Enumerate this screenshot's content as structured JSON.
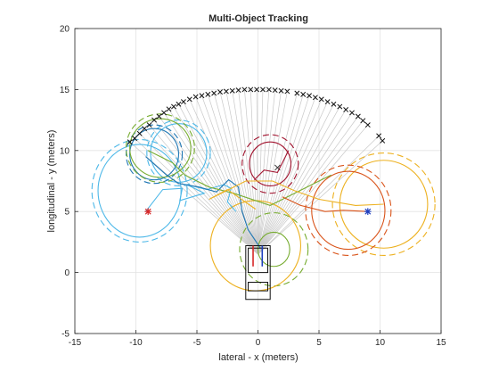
{
  "chart_data": {
    "type": "scatter",
    "title": "Multi-Object Tracking",
    "xlabel": "lateral - x (meters)",
    "ylabel": "longitudinal - y (meters)",
    "xlim": [
      -15,
      15
    ],
    "ylim": [
      -5,
      20
    ],
    "xticks": [
      -15,
      -10,
      -5,
      0,
      5,
      10,
      15
    ],
    "yticks": [
      -5,
      0,
      5,
      10,
      15,
      20
    ],
    "grid": true,
    "sensor_origin": [
      0,
      1.5
    ],
    "lidar_detections": [
      [
        -10.5,
        10.7
      ],
      [
        -10.1,
        11.0
      ],
      [
        -9.7,
        11.4
      ],
      [
        -9.3,
        11.8
      ],
      [
        -8.9,
        12.1
      ],
      [
        -8.5,
        12.5
      ],
      [
        -8.1,
        12.8
      ],
      [
        -7.7,
        13.1
      ],
      [
        -7.3,
        13.4
      ],
      [
        -6.9,
        13.6
      ],
      [
        -6.5,
        13.8
      ],
      [
        -6.1,
        14.0
      ],
      [
        -5.6,
        14.2
      ],
      [
        -5.1,
        14.4
      ],
      [
        -4.6,
        14.5
      ],
      [
        -4.1,
        14.6
      ],
      [
        -3.6,
        14.7
      ],
      [
        -3.1,
        14.8
      ],
      [
        -2.6,
        14.85
      ],
      [
        -2.1,
        14.9
      ],
      [
        -1.6,
        14.95
      ],
      [
        -1.1,
        15.0
      ],
      [
        -0.6,
        15.0
      ],
      [
        -0.1,
        15.0
      ],
      [
        0.4,
        15.0
      ],
      [
        0.9,
        15.0
      ],
      [
        1.4,
        14.95
      ],
      [
        1.9,
        14.9
      ],
      [
        2.4,
        14.85
      ],
      [
        3.2,
        14.7
      ],
      [
        3.7,
        14.6
      ],
      [
        4.2,
        14.5
      ],
      [
        4.7,
        14.35
      ],
      [
        5.2,
        14.2
      ],
      [
        5.7,
        14.0
      ],
      [
        6.2,
        13.8
      ],
      [
        6.7,
        13.6
      ],
      [
        7.2,
        13.35
      ],
      [
        7.7,
        13.1
      ],
      [
        8.2,
        12.8
      ],
      [
        8.6,
        12.45
      ],
      [
        9.0,
        12.1
      ],
      [
        9.9,
        11.2
      ],
      [
        10.2,
        10.8
      ]
    ],
    "target_markers": [
      {
        "x": -9.0,
        "y": 5.0,
        "symbol": "*",
        "color": "#d62728"
      },
      {
        "x": 9.0,
        "y": 5.0,
        "symbol": "*",
        "color": "#1f3fbf"
      },
      {
        "x": 1.6,
        "y": 8.6,
        "symbol": "x",
        "color": "#333333"
      }
    ],
    "series": [
      {
        "color": "#4db8e8",
        "ellipses": [
          {
            "cx": -9.7,
            "cy": 6.7,
            "rx": 3.4,
            "ry": 3.8,
            "dashed": false
          },
          {
            "cx": -9.7,
            "cy": 6.7,
            "rx": 3.9,
            "ry": 4.2,
            "dashed": true
          },
          {
            "cx": -6.5,
            "cy": 9.8,
            "rx": 2.3,
            "ry": 2.4,
            "dashed": false
          },
          {
            "cx": -6.5,
            "cy": 9.8,
            "rx": 2.6,
            "ry": 2.7,
            "dashed": true
          }
        ],
        "path": [
          [
            -9.2,
            5.0
          ],
          [
            -7.8,
            6.8
          ],
          [
            -6.2,
            6.9
          ],
          [
            -6.4,
            5.9
          ],
          [
            -4.4,
            6.5
          ],
          [
            -5.8,
            7.2
          ],
          [
            -4.2,
            6.8
          ],
          [
            -2.8,
            7.2
          ],
          [
            -2.2,
            6.9
          ],
          [
            -2.5,
            5.8
          ],
          [
            -1.8,
            5.0
          ]
        ]
      },
      {
        "color": "#1f77b4",
        "ellipses": [
          {
            "cx": -8.5,
            "cy": 9.7,
            "rx": 2.0,
            "ry": 2.1,
            "dashed": false
          },
          {
            "cx": -8.5,
            "cy": 9.7,
            "rx": 2.3,
            "ry": 2.4,
            "dashed": true
          }
        ],
        "path": [
          [
            -9.2,
            9.5
          ],
          [
            -7.5,
            8.0
          ],
          [
            -6.5,
            7.3
          ],
          [
            -4.8,
            7.0
          ],
          [
            -3.4,
            6.6
          ],
          [
            -2.4,
            7.6
          ],
          [
            -1.6,
            7.0
          ],
          [
            -1.3,
            5.0
          ],
          [
            -0.8,
            3.5
          ],
          [
            0.2,
            2.0
          ]
        ]
      },
      {
        "color": "#77ac30",
        "ellipses": [
          {
            "cx": -8.0,
            "cy": 10.2,
            "rx": 2.5,
            "ry": 2.4,
            "dashed": false
          },
          {
            "cx": -8.0,
            "cy": 10.2,
            "rx": 2.8,
            "ry": 2.8,
            "dashed": true
          },
          {
            "cx": 1.3,
            "cy": 1.9,
            "rx": 1.3,
            "ry": 1.4,
            "dashed": false
          },
          {
            "cx": 1.3,
            "cy": 1.9,
            "rx": 2.8,
            "ry": 3.0,
            "dashed": true
          }
        ],
        "path": [
          [
            -9.0,
            10.0
          ],
          [
            -7.0,
            9.0
          ],
          [
            -6.0,
            8.0
          ],
          [
            -4.0,
            7.0
          ],
          [
            -2.0,
            6.5
          ],
          [
            1.0,
            5.5
          ],
          [
            3.0,
            6.5
          ],
          [
            5.0,
            7.5
          ],
          [
            6.0,
            8.0
          ]
        ]
      },
      {
        "color": "#edb120",
        "ellipses": [
          {
            "cx": -0.2,
            "cy": 2.2,
            "rx": 3.7,
            "ry": 3.7,
            "dashed": false
          },
          {
            "cx": 10.3,
            "cy": 5.6,
            "rx": 3.6,
            "ry": 3.6,
            "dashed": false
          },
          {
            "cx": 10.3,
            "cy": 5.6,
            "rx": 4.2,
            "ry": 4.2,
            "dashed": true
          }
        ],
        "path": [
          [
            -0.2,
            5.2
          ],
          [
            -2.5,
            6.8
          ],
          [
            -4.0,
            6.0
          ],
          [
            -1.0,
            7.5
          ],
          [
            1.2,
            7.5
          ],
          [
            3.0,
            6.7
          ],
          [
            5.0,
            6.0
          ],
          [
            8.0,
            5.5
          ],
          [
            10.3,
            5.6
          ]
        ]
      },
      {
        "color": "#d95319",
        "ellipses": [
          {
            "cx": 7.4,
            "cy": 5.1,
            "rx": 3.0,
            "ry": 3.2,
            "dashed": false
          },
          {
            "cx": 7.4,
            "cy": 5.1,
            "rx": 3.5,
            "ry": 3.7,
            "dashed": true
          }
        ],
        "path": [
          [
            2.0,
            6.2
          ],
          [
            3.5,
            5.5
          ],
          [
            5.5,
            5.0
          ],
          [
            7.0,
            5.1
          ],
          [
            9.0,
            5.0
          ]
        ]
      },
      {
        "color": "#a2142f",
        "ellipses": [
          {
            "cx": 1.0,
            "cy": 8.9,
            "rx": 1.7,
            "ry": 1.8,
            "dashed": false
          },
          {
            "cx": 1.0,
            "cy": 8.9,
            "rx": 2.3,
            "ry": 2.4,
            "dashed": true
          }
        ],
        "path": [
          [
            -0.3,
            7.6
          ],
          [
            0.5,
            8.4
          ],
          [
            1.6,
            8.2
          ],
          [
            2.5,
            10.0
          ]
        ]
      }
    ],
    "ego_vehicle": {
      "outline": [
        [
          -1.0,
          -2.2
        ],
        [
          1.0,
          -2.2
        ],
        [
          1.0,
          2.2
        ],
        [
          -1.0,
          2.2
        ]
      ],
      "windshield": [
        [
          -0.8,
          -1.5
        ],
        [
          0.8,
          -1.5
        ],
        [
          0.8,
          -0.8
        ],
        [
          -0.8,
          -0.8
        ]
      ],
      "front_bar": [
        [
          -0.8,
          0.0
        ],
        [
          0.8,
          0.0
        ],
        [
          0.8,
          2.0
        ],
        [
          -0.8,
          2.0
        ]
      ],
      "nose_red": [
        [
          -0.4,
          0.5
        ],
        [
          -0.4,
          2.2
        ]
      ],
      "nose_blue": [
        [
          0.35,
          0.5
        ],
        [
          0.35,
          2.2
        ]
      ]
    }
  }
}
